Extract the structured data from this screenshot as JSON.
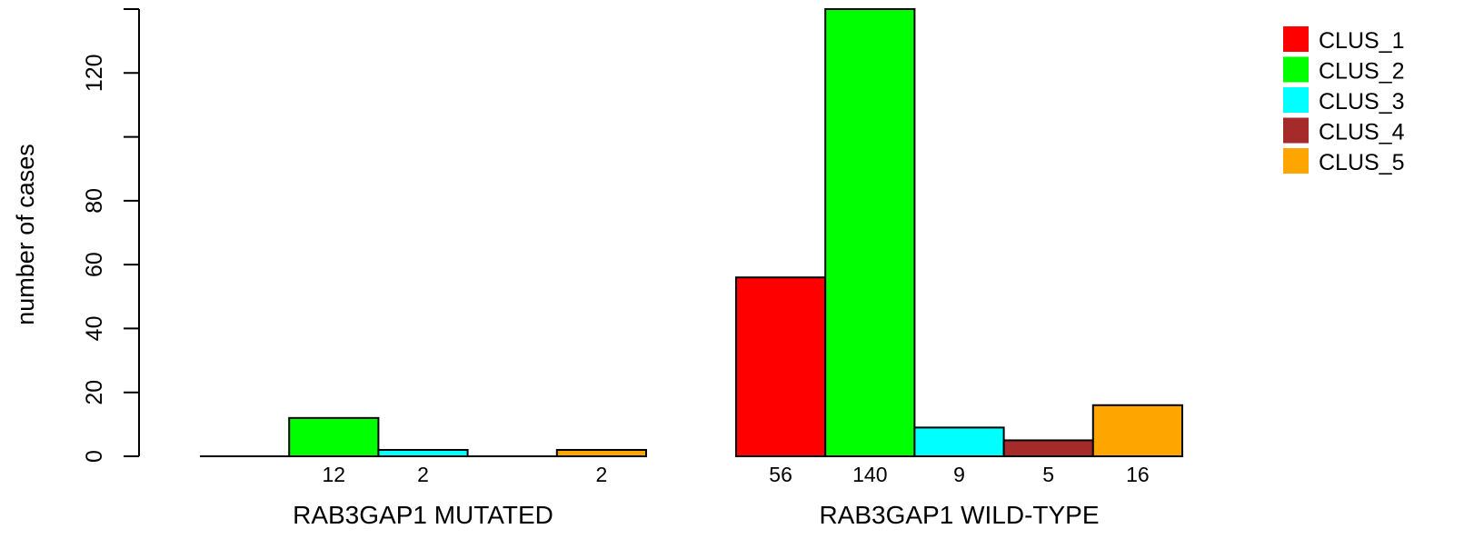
{
  "chart_data": {
    "type": "bar",
    "ylabel": "number of cases",
    "ylim": [
      0,
      140
    ],
    "y_ticks": [
      0,
      20,
      40,
      60,
      80,
      100,
      120
    ],
    "y_tick_labels": [
      "0",
      "20",
      "40",
      "60",
      "80",
      "",
      "120"
    ],
    "groups": [
      "RAB3GAP1 MUTATED",
      "RAB3GAP1 WILD-TYPE"
    ],
    "series": [
      {
        "name": "CLUS_1",
        "color": "#ff0000",
        "values": [
          0,
          56
        ]
      },
      {
        "name": "CLUS_2",
        "color": "#00ff00",
        "values": [
          12,
          140
        ]
      },
      {
        "name": "CLUS_3",
        "color": "#00ffff",
        "values": [
          2,
          9
        ]
      },
      {
        "name": "CLUS_4",
        "color": "#a52a2a",
        "values": [
          0,
          5
        ]
      },
      {
        "name": "CLUS_5",
        "color": "#ffa500",
        "values": [
          2,
          16
        ]
      }
    ],
    "bar_value_labels": [
      [
        "",
        "12",
        "2",
        "",
        "2"
      ],
      [
        "56",
        "140",
        "9",
        "5",
        "16"
      ]
    ],
    "legend_position": "top-right",
    "grid": false
  }
}
